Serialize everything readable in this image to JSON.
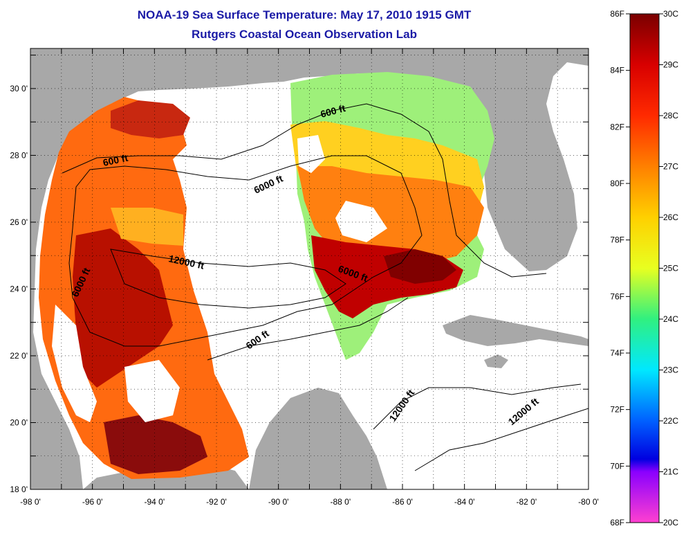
{
  "title": {
    "line1": "NOAA-19 Sea Surface Temperature:  May 17, 2010 1915 GMT",
    "line2": "Rutgers Coastal Ocean Observation Lab"
  },
  "map": {
    "lon_ticks": [
      "-98 0'",
      "-96 0'",
      "-94 0'",
      "-92 0'",
      "-90 0'",
      "-88 0'",
      "-86 0'",
      "-84 0'",
      "-82 0'",
      "-80 0'"
    ],
    "lat_ticks": [
      "18 0'",
      "20 0'",
      "22 0'",
      "24 0'",
      "26 0'",
      "28 0'",
      "30 0'"
    ],
    "lon_range": [
      -98,
      -80
    ],
    "lat_range": [
      18,
      31.2
    ],
    "land_color": "#a8a8a8",
    "contour_labels": [
      "600 ft",
      "600 ft",
      "600 ft",
      "6000 ft",
      "6000 ft",
      "6000 ft",
      "12000 ft",
      "12000 ft",
      "12000 ft"
    ]
  },
  "colorbar": {
    "f_labels": [
      "86F",
      "84F",
      "82F",
      "80F",
      "78F",
      "76F",
      "74F",
      "72F",
      "70F",
      "68F"
    ],
    "c_labels": [
      "30C",
      "29C",
      "28C",
      "27C",
      "26C",
      "25C",
      "24C",
      "23C",
      "22C",
      "21C",
      "20C"
    ],
    "c_range": [
      20,
      30
    ],
    "f_range": [
      68,
      86
    ]
  },
  "colors": {
    "title": "#1a1aa6",
    "land": "#a8a8a8",
    "ocean_cloud": "#ffffff"
  }
}
